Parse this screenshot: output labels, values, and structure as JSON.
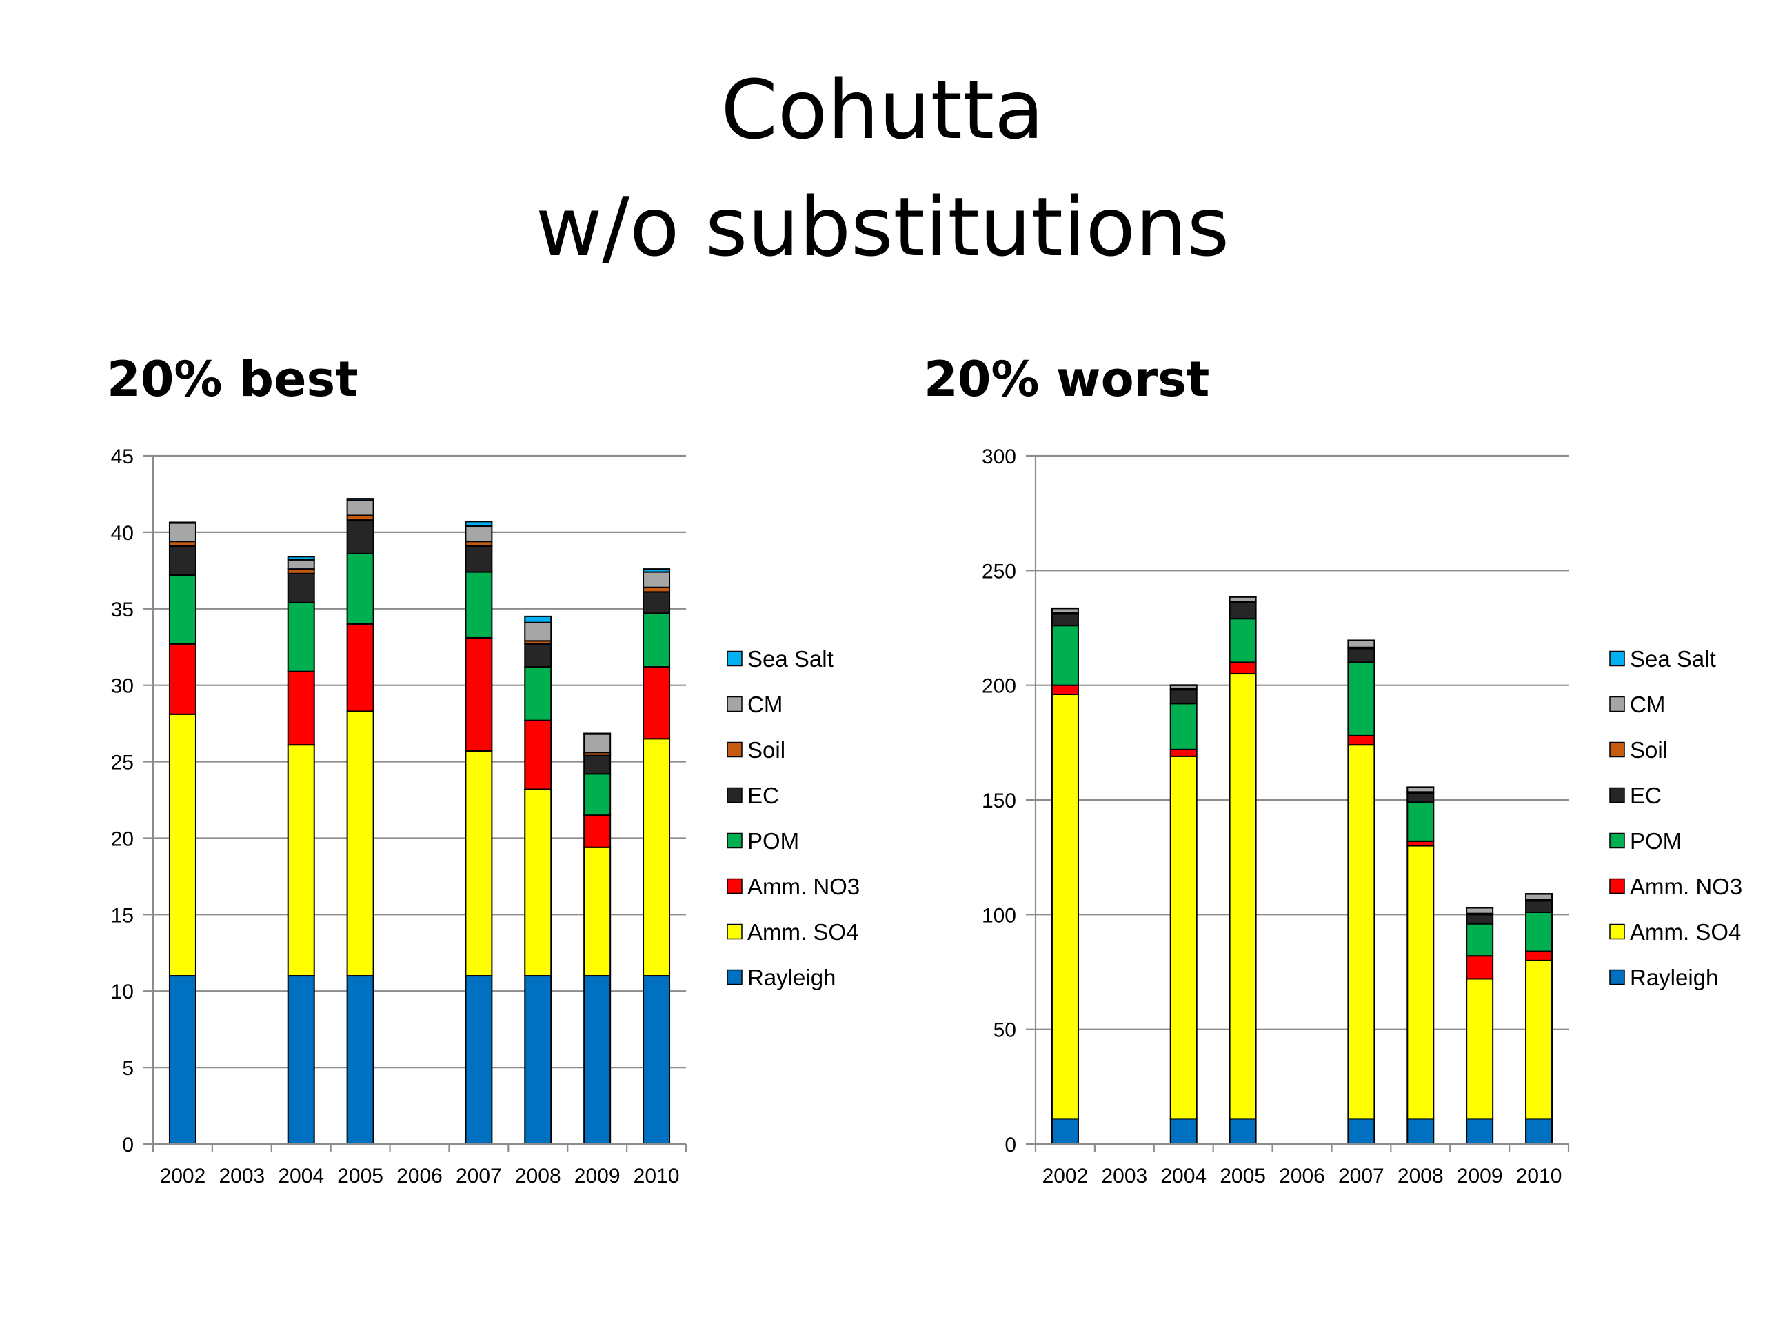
{
  "page": {
    "title_line1": "Cohutta",
    "title_line2": "w/o substitutions"
  },
  "chart_data": [
    {
      "type": "bar",
      "stacked": true,
      "title": "20% best",
      "xlabel": "",
      "ylabel": "",
      "ylim": [
        0,
        45
      ],
      "yticks": [
        0,
        5,
        10,
        15,
        20,
        25,
        30,
        35,
        40,
        45
      ],
      "grid": true,
      "legend_position": "right",
      "categories": [
        "2002",
        "2003",
        "2004",
        "2005",
        "2006",
        "2007",
        "2008",
        "2009",
        "2010"
      ],
      "series": [
        {
          "name": "Rayleigh",
          "color": "#0070c0",
          "values": [
            11,
            null,
            11,
            11,
            null,
            11,
            11,
            11,
            11
          ]
        },
        {
          "name": "Amm. SO4",
          "color": "#ffff00",
          "values": [
            17.1,
            null,
            15.1,
            17.3,
            null,
            14.7,
            12.2,
            8.4,
            15.5
          ]
        },
        {
          "name": "Amm. NO3",
          "color": "#ff0000",
          "values": [
            4.6,
            null,
            4.8,
            5.7,
            null,
            7.4,
            4.5,
            2.1,
            4.7
          ]
        },
        {
          "name": "POM",
          "color": "#00b050",
          "values": [
            4.5,
            null,
            4.5,
            4.6,
            null,
            4.3,
            3.5,
            2.7,
            3.5
          ]
        },
        {
          "name": "EC",
          "color": "#262626",
          "values": [
            1.9,
            null,
            1.9,
            2.2,
            null,
            1.7,
            1.5,
            1.2,
            1.4
          ]
        },
        {
          "name": "Soil",
          "color": "#c55a11",
          "values": [
            0.3,
            null,
            0.3,
            0.3,
            null,
            0.3,
            0.2,
            0.2,
            0.3
          ]
        },
        {
          "name": "CM",
          "color": "#a6a6a6",
          "values": [
            1.2,
            null,
            0.6,
            1.0,
            null,
            1.0,
            1.2,
            1.2,
            1.0
          ]
        },
        {
          "name": "Sea Salt",
          "color": "#00b0f0",
          "values": [
            0.05,
            null,
            0.2,
            0.1,
            null,
            0.3,
            0.4,
            0.05,
            0.2
          ]
        }
      ]
    },
    {
      "type": "bar",
      "stacked": true,
      "title": "20% worst",
      "xlabel": "",
      "ylabel": "",
      "ylim": [
        0,
        300
      ],
      "yticks": [
        0,
        50,
        100,
        150,
        200,
        250,
        300
      ],
      "grid": true,
      "legend_position": "right",
      "categories": [
        "2002",
        "2003",
        "2004",
        "2005",
        "2006",
        "2007",
        "2008",
        "2009",
        "2010"
      ],
      "series": [
        {
          "name": "Rayleigh",
          "color": "#0070c0",
          "values": [
            11,
            null,
            11,
            11,
            null,
            11,
            11,
            11,
            11
          ]
        },
        {
          "name": "Amm. SO4",
          "color": "#ffff00",
          "values": [
            185,
            null,
            158,
            194,
            null,
            163,
            119,
            61,
            69
          ]
        },
        {
          "name": "Amm. NO3",
          "color": "#ff0000",
          "values": [
            4,
            null,
            3,
            5,
            null,
            4,
            2,
            10,
            4
          ]
        },
        {
          "name": "POM",
          "color": "#00b050",
          "values": [
            26,
            null,
            20,
            19,
            null,
            32,
            17,
            14,
            17
          ]
        },
        {
          "name": "EC",
          "color": "#262626",
          "values": [
            5,
            null,
            6,
            7,
            null,
            6,
            4,
            4,
            5
          ]
        },
        {
          "name": "Soil",
          "color": "#c55a11",
          "values": [
            0.5,
            null,
            0.5,
            0.5,
            null,
            0.5,
            0.5,
            0.5,
            0.5
          ]
        },
        {
          "name": "CM",
          "color": "#a6a6a6",
          "values": [
            2,
            null,
            1.5,
            2,
            null,
            3,
            2,
            2.5,
            2.5
          ]
        },
        {
          "name": "Sea Salt",
          "color": "#00b0f0",
          "values": [
            0.1,
            null,
            0.1,
            0.1,
            null,
            0.1,
            0.1,
            0.1,
            0.1
          ]
        }
      ]
    }
  ]
}
